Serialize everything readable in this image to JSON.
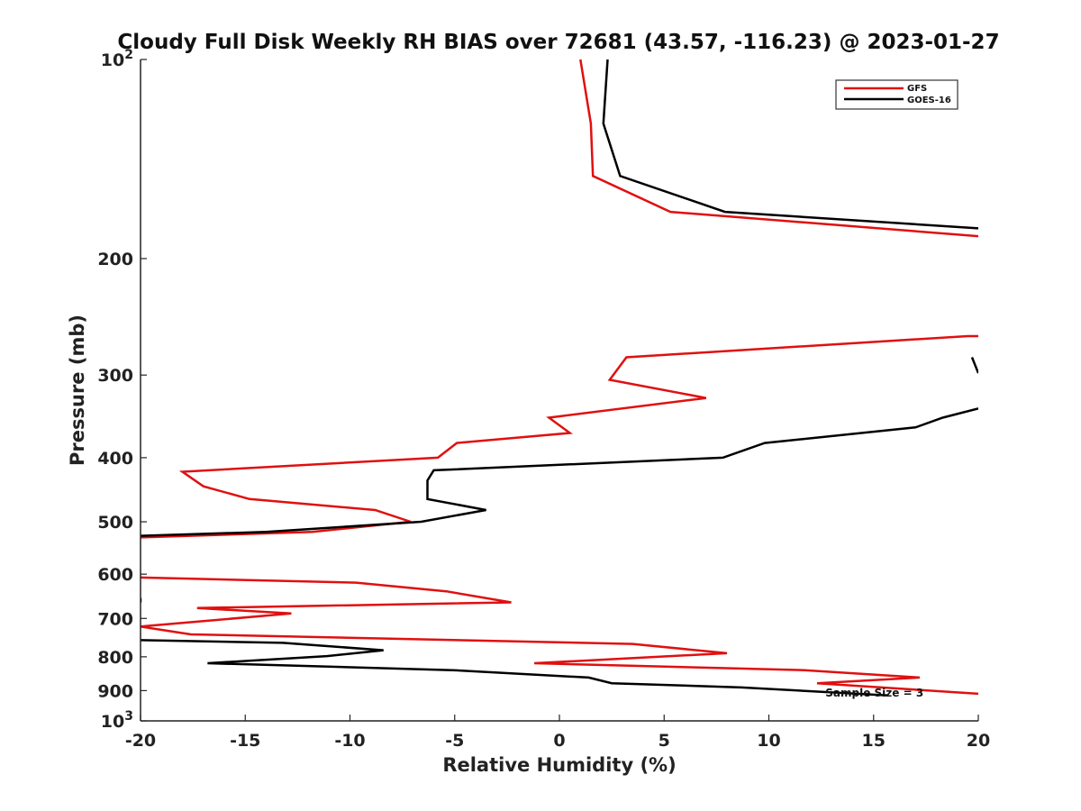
{
  "chart_data": {
    "type": "line",
    "title": "Cloudy Full Disk Weekly RH BIAS over 72681 (43.57, -116.23) @ 2023-01-27",
    "xlabel": "Relative Humidity (%)",
    "ylabel": "Pressure (mb)",
    "xlim": [
      -20,
      20
    ],
    "ylim": [
      100,
      1000
    ],
    "y_scale": "log",
    "y_reversed": true,
    "grid": false,
    "legend_position": "top-right",
    "x_ticks": [
      -20,
      -15,
      -10,
      -5,
      0,
      5,
      10,
      15,
      20
    ],
    "x_tick_labels": [
      "-20",
      "-15",
      "-10",
      "-5",
      "0",
      "5",
      "10",
      "15",
      "20"
    ],
    "y_ticks": [
      100,
      200,
      300,
      400,
      500,
      600,
      700,
      800,
      900,
      1000
    ],
    "y_tick_labels": [
      {
        "base": "10",
        "exp": "2"
      },
      {
        "base": "200",
        "exp": ""
      },
      {
        "base": "300",
        "exp": ""
      },
      {
        "base": "400",
        "exp": ""
      },
      {
        "base": "500",
        "exp": ""
      },
      {
        "base": "600",
        "exp": ""
      },
      {
        "base": "700",
        "exp": ""
      },
      {
        "base": "800",
        "exp": ""
      },
      {
        "base": "900",
        "exp": ""
      },
      {
        "base": "10",
        "exp": "3"
      }
    ],
    "annotation": "Sample Size = 3",
    "annotation_at": {
      "x": 12.7,
      "p": 908
    },
    "series": [
      {
        "name": "GFS",
        "color": "#e01010",
        "segments": [
          [
            [
              1,
              100
            ],
            [
              1.5,
              125
            ],
            [
              1.6,
              150
            ],
            [
              5.3,
              170
            ],
            [
              20,
              185
            ]
          ],
          [
            [
              20,
              262
            ],
            [
              19.5,
              262
            ],
            [
              3.2,
              282
            ],
            [
              2.4,
              305
            ],
            [
              7,
              325
            ],
            [
              -0.5,
              348
            ],
            [
              0.5,
              367
            ],
            [
              -4.9,
              380
            ],
            [
              -5.8,
              400
            ],
            [
              -18,
              420
            ],
            [
              -17,
              442
            ],
            [
              -14.8,
              462
            ],
            [
              -8.8,
              480
            ],
            [
              -7.1,
              500
            ],
            [
              -11.8,
              518
            ],
            [
              -20,
              528
            ]
          ],
          [
            [
              -20,
              607
            ],
            [
              -9.7,
              618
            ],
            [
              -5.4,
              637
            ],
            [
              -2.3,
              662
            ],
            [
              -17.3,
              675
            ],
            [
              -12.8,
              688
            ],
            [
              -20,
              720
            ],
            [
              -17.6,
              740
            ],
            [
              3.5,
              765
            ],
            [
              8,
              790
            ],
            [
              -1.2,
              818
            ],
            [
              11.7,
              838
            ],
            [
              17.2,
              860
            ],
            [
              12.3,
              877
            ],
            [
              20,
              910
            ]
          ]
        ]
      },
      {
        "name": "GOES-16",
        "color": "#000000",
        "segments": [
          [
            [
              2.3,
              100
            ],
            [
              2.1,
              125
            ],
            [
              2.9,
              150
            ],
            [
              7.9,
              170
            ],
            [
              20,
              180
            ]
          ],
          [
            [
              19.7,
              282
            ],
            [
              20,
              298
            ]
          ],
          [
            [
              20,
              337
            ],
            [
              18.3,
              348
            ],
            [
              17,
              360
            ],
            [
              9.8,
              380
            ],
            [
              7.8,
              400
            ],
            [
              -6,
              418
            ],
            [
              -6.3,
              433
            ],
            [
              -6.3,
              462
            ],
            [
              -3.5,
              480
            ],
            [
              -6.6,
              500
            ],
            [
              -14,
              518
            ],
            [
              -20,
              525
            ]
          ],
          [
            [
              -20,
              652
            ],
            [
              -20,
              662
            ]
          ],
          [
            [
              -20,
              755
            ],
            [
              -13.2,
              762
            ],
            [
              -8.4,
              782
            ],
            [
              -11.1,
              798
            ],
            [
              -16.8,
              818
            ],
            [
              -5.1,
              838
            ],
            [
              1.4,
              860
            ],
            [
              2.5,
              877
            ],
            [
              8.7,
              890
            ],
            [
              15.7,
              915
            ]
          ]
        ]
      }
    ]
  }
}
